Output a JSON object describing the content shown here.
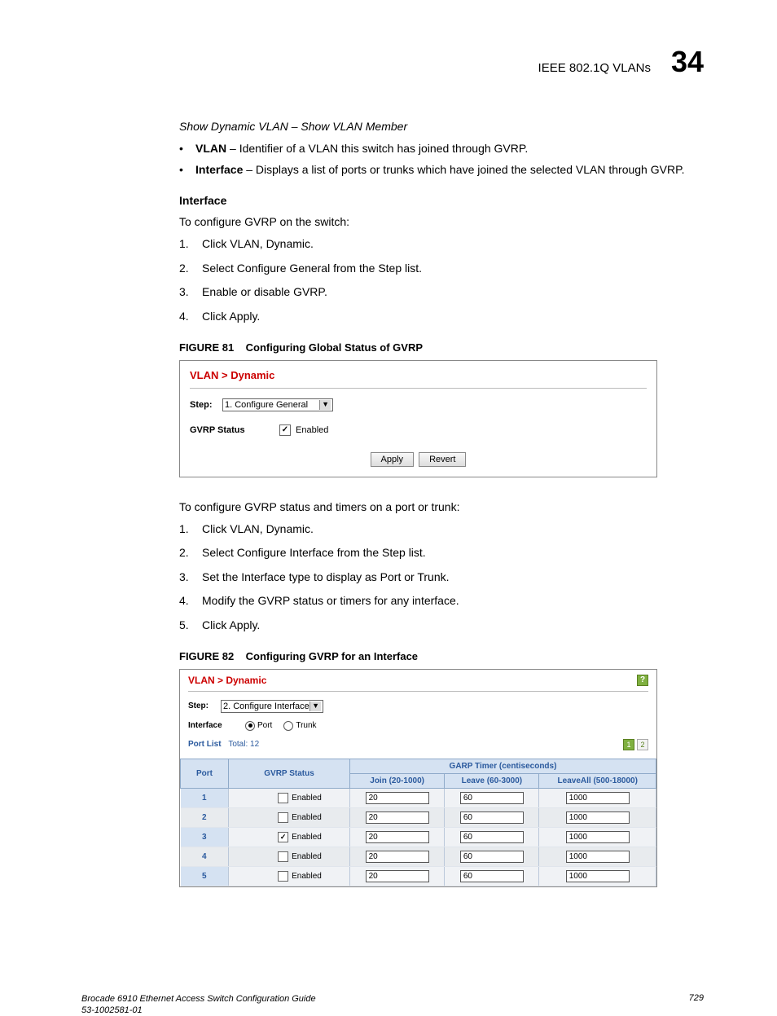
{
  "header": {
    "title": "IEEE 802.1Q VLANs",
    "chapter": "34"
  },
  "section_italic": "Show Dynamic VLAN – Show VLAN Member",
  "bullets": [
    {
      "term": "VLAN",
      "text": " – Identifier of a VLAN this switch has joined through GVRP."
    },
    {
      "term": "Interface",
      "text": " – Displays a list of ports or trunks which have joined the selected VLAN through GVRP."
    }
  ],
  "interface_heading": "Interface",
  "proc1_intro": "To configure GVRP on the switch:",
  "proc1_steps": [
    "Click VLAN, Dynamic.",
    "Select Configure General from the Step list.",
    "Enable or disable GVRP.",
    "Click Apply."
  ],
  "fig81": {
    "label": "FIGURE 81",
    "caption": "Configuring Global Status of GVRP",
    "breadcrumb": "VLAN > Dynamic",
    "step_label": "Step:",
    "step_value": "1. Configure General",
    "status_label": "GVRP Status",
    "enabled_label": "Enabled",
    "enabled_checked": true,
    "apply_btn": "Apply",
    "revert_btn": "Revert"
  },
  "proc2_intro": "To configure GVRP status and timers on a port or trunk:",
  "proc2_steps": [
    "Click VLAN, Dynamic.",
    "Select Configure Interface from the Step list.",
    "Set the Interface type to display as Port or Trunk.",
    "Modify the GVRP status or timers for any interface.",
    "Click Apply."
  ],
  "fig82": {
    "label": "FIGURE 82",
    "caption": "Configuring GVRP for an Interface",
    "breadcrumb": "VLAN > Dynamic",
    "step_label": "Step:",
    "step_value": "2. Configure Interface",
    "interface_label": "Interface",
    "radio_port": "Port",
    "radio_trunk": "Trunk",
    "portlist_label": "Port List",
    "portlist_total": "Total: 12",
    "page1": "1",
    "page2": "2",
    "col_port": "Port",
    "col_gvrp": "GVRP Status",
    "col_garp": "GARP Timer (centiseconds)",
    "col_join": "Join (20-1000)",
    "col_leave": "Leave (60-3000)",
    "col_leaveall": "LeaveAll (500-18000)",
    "rows": [
      {
        "port": "1",
        "checked": false,
        "enabled": "Enabled",
        "join": "20",
        "leave": "60",
        "leaveall": "1000"
      },
      {
        "port": "2",
        "checked": false,
        "enabled": "Enabled",
        "join": "20",
        "leave": "60",
        "leaveall": "1000"
      },
      {
        "port": "3",
        "checked": true,
        "enabled": "Enabled",
        "join": "20",
        "leave": "60",
        "leaveall": "1000"
      },
      {
        "port": "4",
        "checked": false,
        "enabled": "Enabled",
        "join": "20",
        "leave": "60",
        "leaveall": "1000"
      },
      {
        "port": "5",
        "checked": false,
        "enabled": "Enabled",
        "join": "20",
        "leave": "60",
        "leaveall": "1000"
      }
    ]
  },
  "footer": {
    "line1": "Brocade 6910 Ethernet Access Switch Configuration Guide",
    "line2": "53-1002581-01",
    "page": "729"
  }
}
